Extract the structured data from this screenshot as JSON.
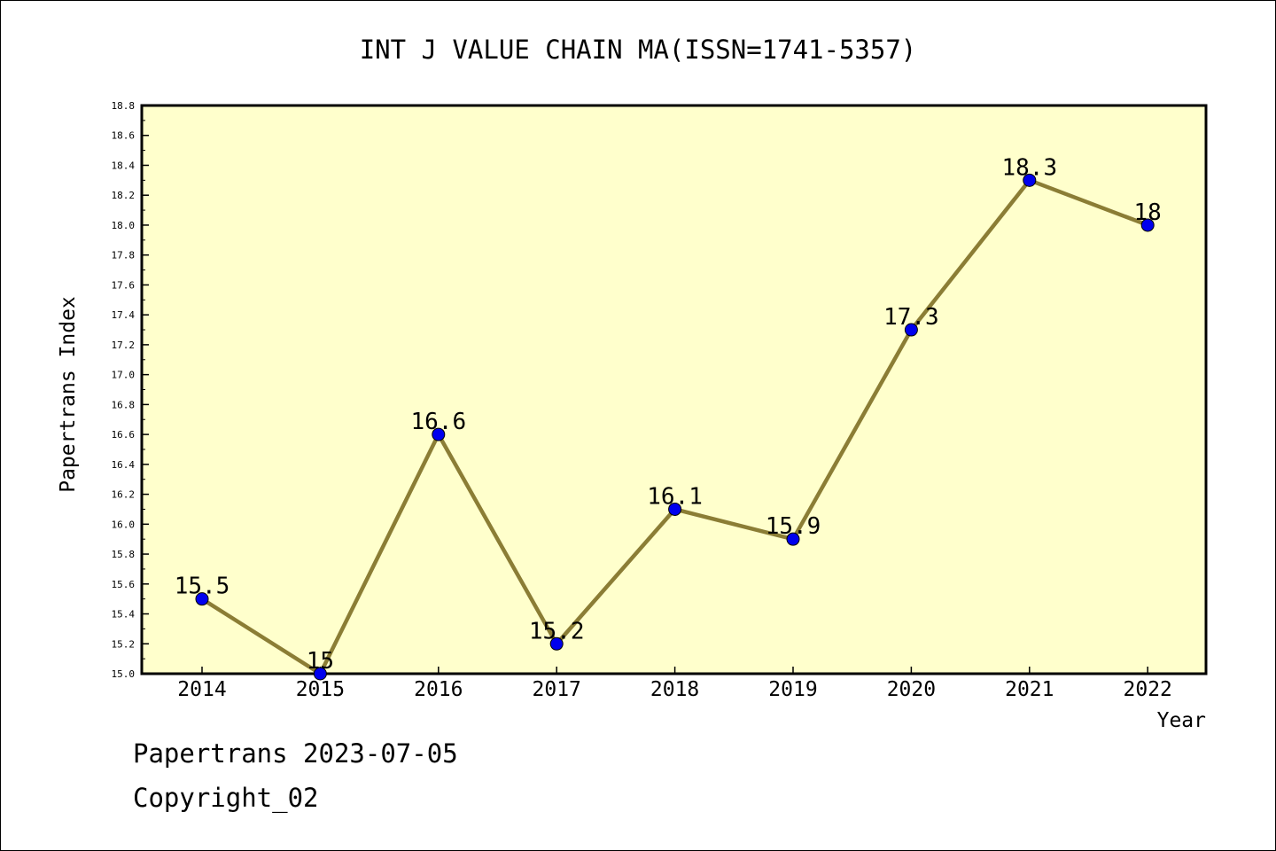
{
  "chart_data": {
    "type": "line",
    "title": "INT J VALUE CHAIN MA(ISSN=1741-5357)",
    "xlabel": "Year",
    "ylabel": "Papertrans Index",
    "categories": [
      "2014",
      "2015",
      "2016",
      "2017",
      "2018",
      "2019",
      "2020",
      "2021",
      "2022"
    ],
    "series": [
      {
        "values": [
          15.5,
          15.0,
          16.6,
          15.2,
          16.1,
          15.9,
          17.3,
          18.3,
          18.0
        ],
        "labels": [
          "15.5",
          "15",
          "16.6",
          "15.2",
          "16.1",
          "15.9",
          "17.3",
          "18.3",
          "18"
        ]
      }
    ],
    "ylim": [
      15.0,
      18.8
    ],
    "yticks": [
      "15.0",
      "15.2",
      "15.4",
      "15.6",
      "15.8",
      "16.0",
      "16.2",
      "16.4",
      "16.6",
      "16.8",
      "17.0",
      "17.2",
      "17.4",
      "17.6",
      "17.8",
      "18.0",
      "18.2",
      "18.4",
      "18.6",
      "18.8"
    ],
    "grid": false,
    "colors": {
      "plot_background": "#ffffcc",
      "line": "#8b7d35",
      "marker": "#0000ee"
    }
  },
  "footer": {
    "line1": "Papertrans 2023-07-05",
    "line2": "Copyright_02"
  }
}
